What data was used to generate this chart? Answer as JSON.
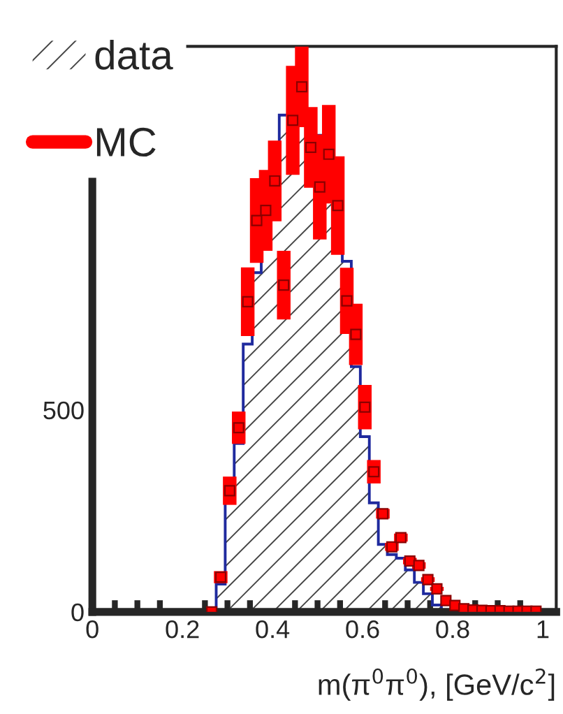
{
  "chart_data": {
    "type": "histogram",
    "xlabel": "m(π$^{0}$π$^{0}$), [GeV/c$^{2}$]",
    "xlim": [
      0,
      1.03
    ],
    "xticks": [
      0,
      {
        "value": 0.05,
        "label": null
      },
      {
        "value": 0.1,
        "label": null
      },
      {
        "value": 0.15,
        "label": null
      },
      0.2,
      {
        "value": 0.25,
        "label": null
      },
      {
        "value": 0.3,
        "label": null
      },
      {
        "value": 0.35,
        "label": null
      },
      0.4,
      {
        "value": 0.45,
        "label": null
      },
      {
        "value": 0.5,
        "label": null
      },
      {
        "value": 0.55,
        "label": null
      },
      0.6,
      {
        "value": 0.65,
        "label": null
      },
      {
        "value": 0.7,
        "label": null
      },
      {
        "value": 0.75,
        "label": null
      },
      0.8,
      {
        "value": 0.85,
        "label": null
      },
      {
        "value": 0.9,
        "label": null
      },
      {
        "value": 0.95,
        "label": null
      },
      1
    ],
    "ylim": [
      0,
      1400
    ],
    "yticks": [
      0,
      500
    ],
    "legend": "top left",
    "grid": false,
    "series": [
      {
        "name": "data",
        "color": "#1f2a9e",
        "bins": [
          0.275,
          0.295,
          0.315,
          0.335,
          0.355,
          0.375,
          0.395,
          0.415,
          0.435,
          0.455,
          0.475,
          0.495,
          0.515,
          0.535,
          0.555,
          0.575,
          0.595,
          0.615,
          0.635,
          0.655,
          0.675,
          0.695,
          0.715,
          0.735,
          0.755,
          0.775,
          0.795
        ],
        "values": [
          69,
          305,
          417,
          663,
          840,
          960,
          1100,
          1230,
          1280,
          1300,
          1240,
          1180,
          1110,
          990,
          868,
          607,
          434,
          270,
          167,
          142,
          133,
          104,
          73,
          45,
          17,
          5
        ]
      },
      {
        "name": "MC",
        "type": "scatter",
        "color": "#ff0000",
        "marker": "square",
        "x": [
          0.265,
          0.285,
          0.305,
          0.325,
          0.345,
          0.365,
          0.385,
          0.405,
          0.425,
          0.445,
          0.465,
          0.485,
          0.505,
          0.525,
          0.545,
          0.565,
          0.585,
          0.605,
          0.625,
          0.645,
          0.665,
          0.685,
          0.705,
          0.725,
          0.745,
          0.765,
          0.785,
          0.805,
          0.825,
          0.845,
          0.865,
          0.885,
          0.905,
          0.925,
          0.945,
          0.965,
          0.985
        ],
        "values": [
          0,
          86,
          300,
          456,
          768,
          969,
          994,
          1067,
          809,
          1217,
          1300,
          1150,
          1052,
          1133,
          1006,
          770,
          687,
          507,
          347,
          243,
          161,
          184,
          126,
          115,
          80,
          57,
          28,
          16,
          8,
          5,
          4,
          3,
          3,
          2,
          2,
          2,
          2
        ],
        "errors": [
          null,
          15,
          35,
          40,
          85,
          105,
          100,
          100,
          85,
          135,
          100,
          100,
          130,
          122,
          122,
          82,
          76,
          55,
          29,
          12,
          10,
          10,
          8,
          8,
          6,
          5,
          null,
          null,
          null,
          null,
          null,
          null,
          null,
          null,
          null,
          null,
          null
        ]
      }
    ]
  }
}
